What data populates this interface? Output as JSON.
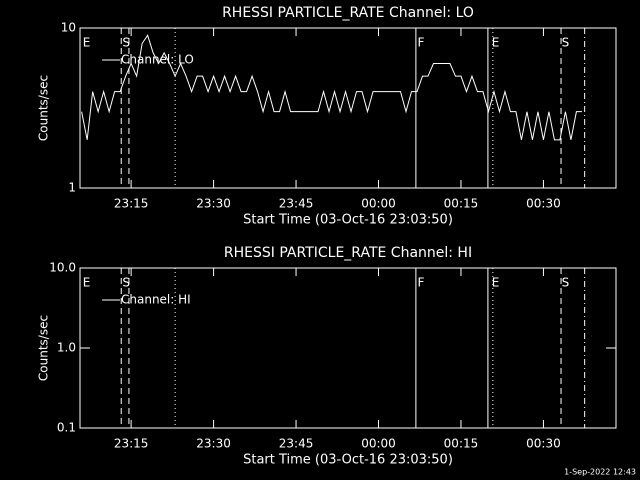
{
  "chart_data": [
    {
      "type": "line",
      "title": "RHESSI PARTICLE_RATE Channel: LO",
      "xlabel": "Start Time (03-Oct-16 23:03:50)",
      "ylabel": "Counts/sec",
      "x": [
        1386,
        1387,
        1388,
        1389,
        1390,
        1391,
        1392,
        1393,
        1394,
        1395,
        1396,
        1397,
        1398,
        1399,
        1400,
        1401,
        1402,
        1403,
        1404,
        1405,
        1406,
        1407,
        1408,
        1409,
        1410,
        1411,
        1412,
        1413,
        1414,
        1415,
        1416,
        1417,
        1418,
        1419,
        1420,
        1421,
        1422,
        1423,
        1424,
        1425,
        1426,
        1427,
        1428,
        1429,
        1430,
        1431,
        1432,
        1433,
        1434,
        1435,
        1436,
        1437,
        1438,
        1439,
        1440,
        1441,
        1442,
        1443,
        1444,
        1445,
        1446,
        1447,
        1448,
        1449,
        1450,
        1451,
        1452,
        1453,
        1454,
        1455,
        1456,
        1457,
        1458,
        1459,
        1460,
        1461,
        1462,
        1463,
        1464,
        1465,
        1466,
        1467,
        1468,
        1469,
        1470,
        1471,
        1472,
        1473,
        1474,
        1475,
        1476,
        1477
      ],
      "series": [
        {
          "name": "Channel: LO",
          "color": "#ffffff",
          "values": [
            3,
            2,
            4,
            3,
            4,
            3,
            4,
            4,
            5,
            6,
            5,
            8,
            9,
            7,
            6,
            7,
            6,
            5,
            6,
            5,
            4,
            5,
            5,
            4,
            5,
            4,
            5,
            4,
            5,
            4,
            4,
            5,
            4,
            3,
            4,
            3,
            3,
            4,
            3,
            3,
            3,
            3,
            3,
            3,
            4,
            3,
            4,
            3,
            4,
            3,
            4,
            4,
            3,
            4,
            4,
            4,
            4,
            4,
            4,
            3,
            4,
            4,
            5,
            5,
            6,
            6,
            6,
            6,
            5,
            5,
            4,
            5,
            4,
            4,
            3,
            4,
            3,
            4,
            3,
            3,
            2,
            3,
            2,
            3,
            2,
            3,
            2,
            2,
            3,
            2,
            3,
            3
          ]
        }
      ],
      "xlim": [
        1385.7,
        1483.2
      ],
      "xticks": [
        {
          "value": 1395,
          "label": "23:15"
        },
        {
          "value": 1410,
          "label": "23:30"
        },
        {
          "value": 1425,
          "label": "23:45"
        },
        {
          "value": 1440,
          "label": "00:00"
        },
        {
          "value": 1455,
          "label": "00:15"
        },
        {
          "value": 1470,
          "label": "00:30"
        }
      ],
      "ylim": [
        1,
        10
      ],
      "yticks": [
        1,
        10
      ],
      "log_y": true,
      "legend": "upper left",
      "vlines": [
        {
          "x": 1393.2,
          "style": "dashed"
        },
        {
          "x": 1394.6,
          "style": "dashed"
        },
        {
          "x": 1403,
          "style": "dotted"
        },
        {
          "x": 1446.8,
          "style": "solid"
        },
        {
          "x": 1459.9,
          "style": "solid"
        },
        {
          "x": 1460.8,
          "style": "dotted"
        },
        {
          "x": 1473.2,
          "style": "dashed"
        },
        {
          "x": 1477.5,
          "style": "dashdot"
        }
      ],
      "flags": [
        {
          "x": 1386.2,
          "label": "E"
        },
        {
          "x": 1393.4,
          "label": "S"
        },
        {
          "x": 1447.1,
          "label": "F"
        },
        {
          "x": 1460.6,
          "label": "E"
        },
        {
          "x": 1473.3,
          "label": "S"
        }
      ]
    },
    {
      "type": "line",
      "title": "RHESSI PARTICLE_RATE Channel: HI",
      "xlabel": "Start Time (03-Oct-16 23:03:50)",
      "ylabel": "Counts/sec",
      "x": [],
      "series": [
        {
          "name": "Channel: HI",
          "color": "#ffffff",
          "values": []
        }
      ],
      "xlim": [
        1385.7,
        1483.2
      ],
      "xticks": [
        {
          "value": 1395,
          "label": "23:15"
        },
        {
          "value": 1410,
          "label": "23:30"
        },
        {
          "value": 1425,
          "label": "23:45"
        },
        {
          "value": 1440,
          "label": "00:00"
        },
        {
          "value": 1455,
          "label": "00:15"
        },
        {
          "value": 1470,
          "label": "00:30"
        }
      ],
      "ylim": [
        0.1,
        10
      ],
      "yticks": [
        0.1,
        {
          "value": 1,
          "label": "1.0"
        },
        {
          "value": 10,
          "label": "10.0"
        }
      ],
      "log_y": true,
      "legend": "upper left",
      "vlines": [
        {
          "x": 1393.2,
          "style": "dashed"
        },
        {
          "x": 1394.6,
          "style": "dashed"
        },
        {
          "x": 1403,
          "style": "dotted"
        },
        {
          "x": 1446.8,
          "style": "solid"
        },
        {
          "x": 1459.9,
          "style": "solid"
        },
        {
          "x": 1460.8,
          "style": "dotted"
        },
        {
          "x": 1473.2,
          "style": "dashed"
        },
        {
          "x": 1477.5,
          "style": "dashdot"
        }
      ],
      "flags": [
        {
          "x": 1386.2,
          "label": "E"
        },
        {
          "x": 1393.4,
          "label": "S"
        },
        {
          "x": 1447.1,
          "label": "F"
        },
        {
          "x": 1460.6,
          "label": "E"
        },
        {
          "x": 1473.3,
          "label": "S"
        }
      ]
    }
  ],
  "footer": "1-Sep-2022 12:43"
}
